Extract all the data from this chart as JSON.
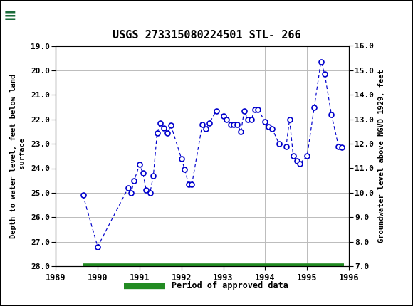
{
  "title": "USGS 273315080224501 STL- 266",
  "ylabel_left": "Depth to water level, feet below land\n surface",
  "ylabel_right": "Groundwater level above NGVD 1929, feet",
  "header_color": "#1a6b3a",
  "ylim_left": [
    28.0,
    19.0
  ],
  "ylim_right": [
    7.0,
    16.0
  ],
  "xlim": [
    1989.0,
    1996.0
  ],
  "yticks_left": [
    19.0,
    20.0,
    21.0,
    22.0,
    23.0,
    24.0,
    25.0,
    26.0,
    27.0,
    28.0
  ],
  "yticks_right": [
    7.0,
    8.0,
    9.0,
    10.0,
    11.0,
    12.0,
    13.0,
    14.0,
    15.0,
    16.0
  ],
  "xticks": [
    1989,
    1990,
    1991,
    1992,
    1993,
    1994,
    1995,
    1996
  ],
  "data_x": [
    1989.65,
    1990.0,
    1990.73,
    1990.8,
    1990.87,
    1991.0,
    1991.08,
    1991.16,
    1991.25,
    1991.33,
    1991.42,
    1991.5,
    1991.58,
    1991.67,
    1991.75,
    1992.0,
    1992.08,
    1992.17,
    1992.25,
    1992.5,
    1992.58,
    1992.67,
    1992.83,
    1993.0,
    1993.08,
    1993.17,
    1993.25,
    1993.33,
    1993.42,
    1993.5,
    1993.58,
    1993.67,
    1993.75,
    1993.83,
    1994.0,
    1994.08,
    1994.17,
    1994.33,
    1994.5,
    1994.58,
    1994.67,
    1994.75,
    1994.83,
    1995.0,
    1995.17,
    1995.33,
    1995.42,
    1995.58,
    1995.75,
    1995.83
  ],
  "data_y": [
    25.1,
    27.2,
    24.8,
    25.0,
    24.5,
    23.85,
    24.2,
    24.9,
    25.0,
    24.3,
    22.55,
    22.15,
    22.35,
    22.55,
    22.25,
    23.6,
    24.05,
    24.65,
    24.65,
    22.2,
    22.4,
    22.15,
    21.65,
    21.85,
    22.0,
    22.2,
    22.2,
    22.2,
    22.5,
    21.65,
    22.0,
    22.0,
    21.6,
    21.6,
    22.1,
    22.3,
    22.4,
    23.0,
    23.1,
    22.0,
    23.5,
    23.7,
    23.8,
    23.5,
    21.5,
    19.65,
    20.15,
    21.8,
    23.1,
    23.15
  ],
  "line_color": "#0000cc",
  "marker_color": "#0000cc",
  "approved_bar_color": "#228B22",
  "approved_bar_x_start": 1989.65,
  "approved_bar_x_end": 1995.88,
  "background_color": "#ffffff",
  "grid_color": "#bbbbbb",
  "outer_border_color": "#000000"
}
